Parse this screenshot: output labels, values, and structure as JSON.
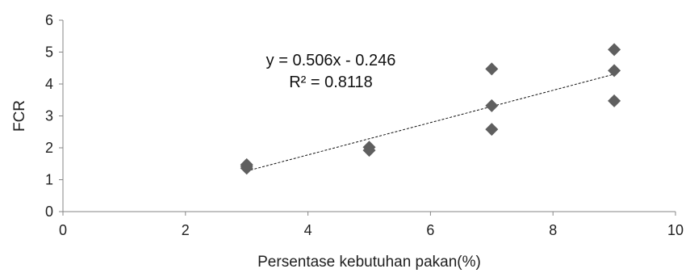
{
  "chart_data": {
    "type": "scatter",
    "title": "",
    "xlabel": "Persentase kebutuhan pakan(%)",
    "ylabel": "FCR",
    "xlim": [
      0,
      10
    ],
    "ylim": [
      0,
      6
    ],
    "xticks": [
      "0",
      "2",
      "4",
      "6",
      "8",
      "10"
    ],
    "yticks": [
      "0",
      "1",
      "2",
      "3",
      "4",
      "5",
      "6"
    ],
    "grid": false,
    "legend": "none",
    "marker": "diamond",
    "marker_color": "#5f5f5f",
    "points": [
      {
        "x": 3,
        "y": 1.47
      },
      {
        "x": 3,
        "y": 1.42
      },
      {
        "x": 3,
        "y": 1.36
      },
      {
        "x": 5,
        "y": 2.02
      },
      {
        "x": 5,
        "y": 1.92
      },
      {
        "x": 7,
        "y": 4.47
      },
      {
        "x": 7,
        "y": 3.32
      },
      {
        "x": 7,
        "y": 2.58
      },
      {
        "x": 9,
        "y": 5.08
      },
      {
        "x": 9,
        "y": 4.42
      },
      {
        "x": 9,
        "y": 3.47
      }
    ],
    "trendline": {
      "type": "linear",
      "slope": 0.506,
      "intercept": -0.246,
      "x_range": [
        3,
        9
      ],
      "style": "dashed",
      "color": "#111111",
      "equation_label": "y = 0.506x - 0.246",
      "r2_label": "R² = 0.8118"
    }
  }
}
